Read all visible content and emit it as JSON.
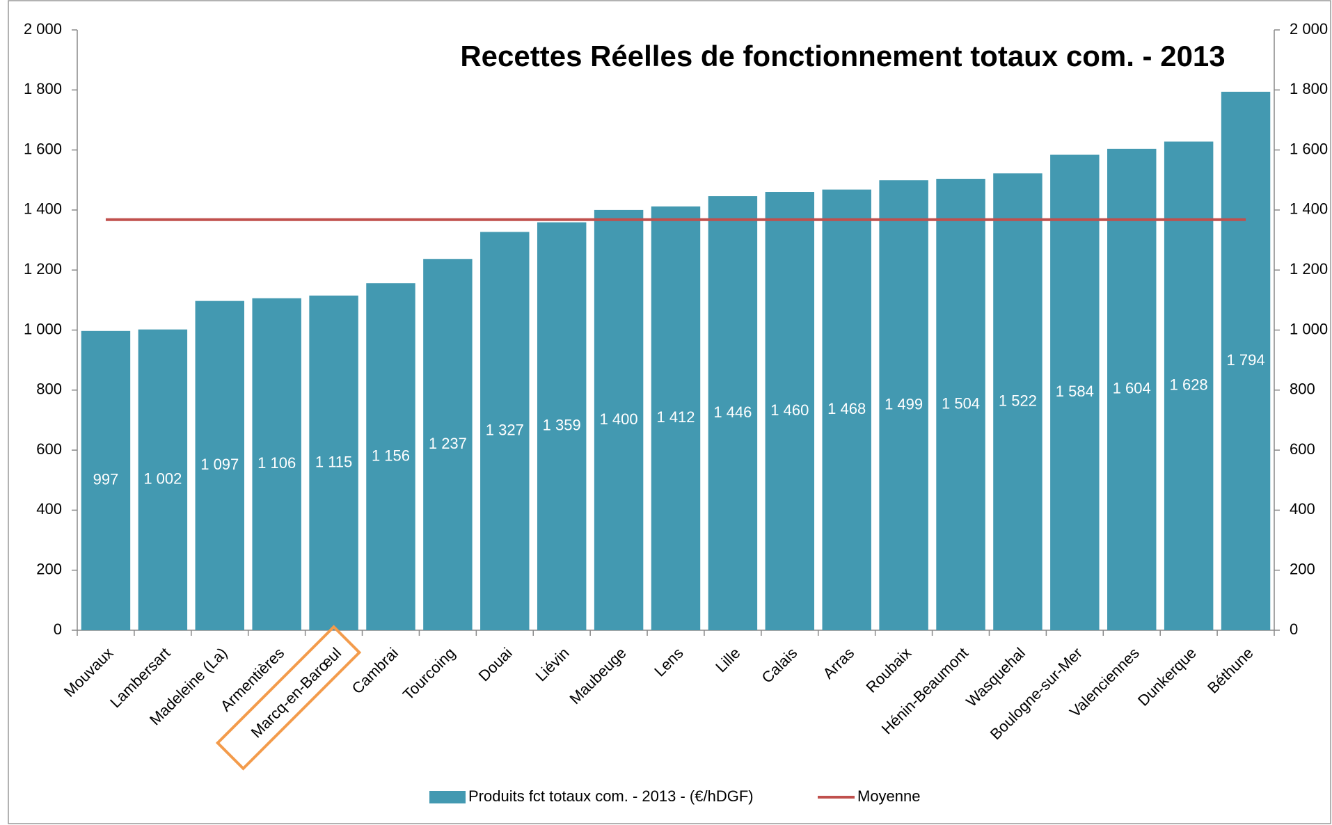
{
  "chart_data": {
    "type": "bar",
    "title": "Recettes Réelles de fonctionnement totaux com. - 2013",
    "categories": [
      "Mouvaux",
      "Lambersart",
      "Madeleine (La)",
      "Armentières",
      "Marcq-en-Barœul",
      "Cambrai",
      "Tourcoing",
      "Douai",
      "Liévin",
      "Maubeuge",
      "Lens",
      "Lille",
      "Calais",
      "Arras",
      "Roubaix",
      "Hénin-Beaumont",
      "Wasquehal",
      "Boulogne-sur-Mer",
      "Valenciennes",
      "Dunkerque",
      "Béthune"
    ],
    "series": [
      {
        "name": "Produits fct totaux com. - 2013 - (€/hDGF)",
        "color": "#4399b1",
        "values": [
          997,
          1002,
          1097,
          1106,
          1115,
          1156,
          1237,
          1327,
          1359,
          1400,
          1412,
          1446,
          1460,
          1468,
          1499,
          1504,
          1522,
          1584,
          1604,
          1628,
          1794
        ],
        "value_labels": [
          "997",
          "1 002",
          "1 097",
          "1 106",
          "1 115",
          "1 156",
          "1 237",
          "1 327",
          "1 359",
          "1 400",
          "1 412",
          "1 446",
          "1 460",
          "1 468",
          "1 499",
          "1 504",
          "1 522",
          "1 584",
          "1 604",
          "1 628",
          "1 794"
        ]
      }
    ],
    "average": {
      "name": "Moyenne",
      "color": "#c0504d",
      "value": 1368
    },
    "ylim": [
      0,
      2000
    ],
    "yticks": [
      0,
      200,
      400,
      600,
      800,
      {
        "value": 1000,
        "label": "1 000"
      },
      {
        "value": 1200,
        "label": "1 200"
      },
      {
        "value": 1400,
        "label": "1 400"
      },
      {
        "value": 1600,
        "label": "1 600"
      },
      {
        "value": 1800,
        "label": "1 800"
      },
      {
        "value": 2000,
        "label": "2 000"
      }
    ],
    "y2lim": [
      0,
      2000
    ],
    "y2ticks": [
      0,
      200,
      400,
      600,
      800,
      {
        "value": 1000,
        "label": "1 000"
      },
      {
        "value": 1200,
        "label": "1 200"
      },
      {
        "value": 1400,
        "label": "1 400"
      },
      {
        "value": 1600,
        "label": "1 600"
      },
      {
        "value": 1800,
        "label": "1 800"
      },
      {
        "value": 2000,
        "label": "2 000"
      }
    ],
    "highlight": 4,
    "legend": "bottom"
  }
}
